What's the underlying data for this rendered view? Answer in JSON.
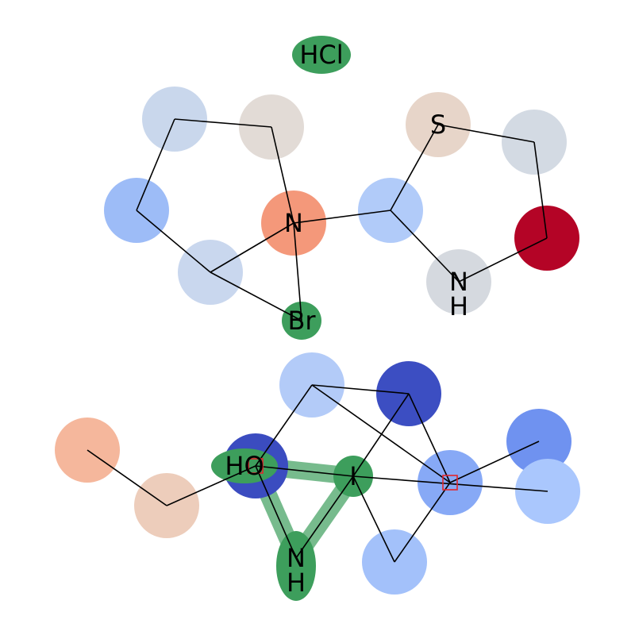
{
  "molecule": {
    "atoms": [
      {
        "id": "cl_hcl",
        "label": "HCl",
        "color": "#3d9e5c",
        "shape": "ellipse"
      },
      {
        "id": "c_ring_top_left",
        "label": "",
        "color": "#c9d7ec"
      },
      {
        "id": "c_ring_top_right",
        "label": "",
        "color": "#e2dbd6"
      },
      {
        "id": "c_ring_left",
        "label": "",
        "color": "#9dbcf7"
      },
      {
        "id": "n_center",
        "label": "N",
        "color": "#f4987a"
      },
      {
        "id": "c_ring_bottom",
        "label": "",
        "color": "#c9d7ee"
      },
      {
        "id": "br",
        "label": "Br",
        "color": "#3d9e5c"
      },
      {
        "id": "c_thz_c2",
        "label": "",
        "color": "#b1cbf9"
      },
      {
        "id": "s_thz",
        "label": "S",
        "color": "#e7d5c9"
      },
      {
        "id": "c_thz_c5",
        "label": "",
        "color": "#d3dae3"
      },
      {
        "id": "c_thz_c4",
        "label": "",
        "color": "#b40426"
      },
      {
        "id": "n_thz",
        "label": "NH",
        "color": "#d5d9df"
      },
      {
        "id": "c_ethyl_end",
        "label": "",
        "color": "#f5b79c"
      },
      {
        "id": "c_ethyl_mid",
        "label": "",
        "color": "#edcdbb"
      },
      {
        "id": "o_ho",
        "label": "HO",
        "color": "#3b4cc0"
      },
      {
        "id": "c_top_a",
        "label": "",
        "color": "#b3cbf8"
      },
      {
        "id": "c_top_b",
        "label": "",
        "color": "#3c4ec2"
      },
      {
        "id": "i_iodo",
        "label": "I",
        "color": "#3d9e5c"
      },
      {
        "id": "c_quat",
        "label": "",
        "color": "#87a9f6"
      },
      {
        "id": "c_me_a",
        "label": "",
        "color": "#6f92f0"
      },
      {
        "id": "c_me_b",
        "label": "",
        "color": "#aac7fd"
      },
      {
        "id": "c_bottom",
        "label": "",
        "color": "#a3c1fa"
      },
      {
        "id": "n_nh",
        "label": "NH",
        "color": "#3d9e5c"
      }
    ],
    "bonds": [
      [
        "c_ring_top_left",
        "c_ring_top_right"
      ],
      [
        "c_ring_top_right",
        "n_center"
      ],
      [
        "c_ring_top_left",
        "c_ring_left"
      ],
      [
        "c_ring_left",
        "c_ring_bottom"
      ],
      [
        "c_ring_bottom",
        "n_center"
      ],
      [
        "n_center",
        "br"
      ],
      [
        "c_ring_bottom",
        "br"
      ],
      [
        "n_center",
        "c_thz_c2"
      ],
      [
        "c_thz_c2",
        "s_thz"
      ],
      [
        "s_thz",
        "c_thz_c5"
      ],
      [
        "c_thz_c5",
        "c_thz_c4"
      ],
      [
        "c_thz_c4",
        "n_thz"
      ],
      [
        "n_thz",
        "c_thz_c2"
      ],
      [
        "c_ethyl_end",
        "c_ethyl_mid"
      ],
      [
        "c_ethyl_mid",
        "o_ho"
      ],
      [
        "o_ho",
        "c_top_a"
      ],
      [
        "c_top_a",
        "c_top_b"
      ],
      [
        "c_top_b",
        "i_iodo"
      ],
      [
        "c_top_a",
        "c_quat"
      ],
      [
        "c_top_b",
        "c_quat"
      ],
      [
        "c_quat",
        "c_me_a"
      ],
      [
        "c_quat",
        "c_bottom"
      ],
      [
        "c_bottom",
        "i_iodo"
      ],
      [
        "i_iodo",
        "c_me_b"
      ],
      [
        "o_ho",
        "n_nh"
      ],
      [
        "o_ho",
        "i_iodo"
      ],
      [
        "n_nh",
        "i_iodo"
      ]
    ],
    "highlight_bonds": [
      [
        "o_ho",
        "i_iodo"
      ],
      [
        "o_ho",
        "n_nh"
      ],
      [
        "n_nh",
        "i_iodo"
      ]
    ],
    "highlight_color": "#3d9e5c",
    "stereo_markers": [
      "o_ho",
      "c_quat"
    ],
    "stereo_marker_color": "#e3262c"
  }
}
